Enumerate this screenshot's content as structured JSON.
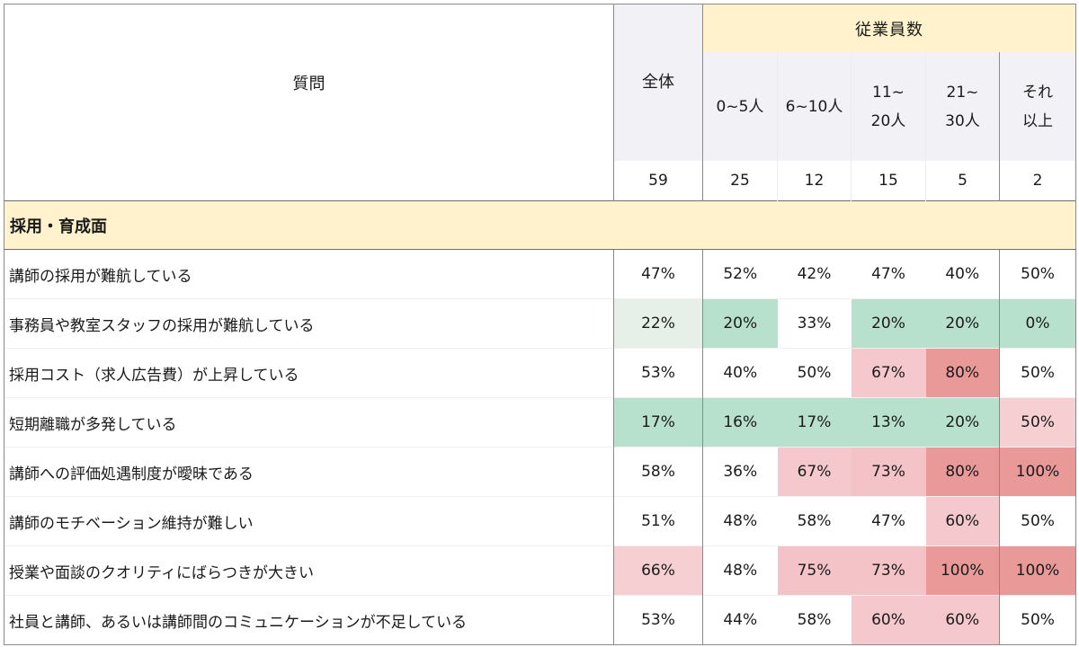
{
  "header": {
    "question_label": "質問",
    "total_label": "全体",
    "group_label": "従業員数",
    "columns": [
      {
        "label_line1": "0~5人",
        "label_line2": ""
      },
      {
        "label_line1": "6~10人",
        "label_line2": ""
      },
      {
        "label_line1": "11~",
        "label_line2": "20人"
      },
      {
        "label_line1": "21~",
        "label_line2": "30人"
      },
      {
        "label_line1": "それ",
        "label_line2": "以上"
      }
    ],
    "counts": {
      "total": "59",
      "values": [
        "25",
        "12",
        "15",
        "5",
        "2"
      ]
    }
  },
  "section": {
    "title": "採用・育成面"
  },
  "colors": {
    "header_group_bg": "#fff2cc",
    "header_sub_bg": "#f2f1f5",
    "green": "#b7e1cd",
    "green_light": "#e6f0e8",
    "pink_light": "#f6cfd3",
    "pink_mid": "#f3bcc2",
    "red": "#ea9999",
    "white": "#ffffff"
  },
  "rows": [
    {
      "question": "講師の採用が難航している",
      "total": "47%",
      "values": [
        "52%",
        "42%",
        "47%",
        "40%",
        "50%"
      ],
      "bg": [
        "#ffffff",
        "#ffffff",
        "#ffffff",
        "#ffffff",
        "#ffffff",
        "#ffffff"
      ]
    },
    {
      "question": "事務員や教室スタッフの採用が難航している",
      "total": "22%",
      "values": [
        "20%",
        "33%",
        "20%",
        "20%",
        "0%"
      ],
      "bg": [
        "#e6f0e8",
        "#b7e1cd",
        "#ffffff",
        "#b7e1cd",
        "#b7e1cd",
        "#b7e1cd"
      ]
    },
    {
      "question": "採用コスト（求人広告費）が上昇している",
      "total": "53%",
      "values": [
        "40%",
        "50%",
        "67%",
        "80%",
        "50%"
      ],
      "bg": [
        "#ffffff",
        "#ffffff",
        "#ffffff",
        "#f4c8cc",
        "#ea9999",
        "#ffffff"
      ]
    },
    {
      "question": "短期離職が多発している",
      "total": "17%",
      "values": [
        "16%",
        "17%",
        "13%",
        "20%",
        "50%"
      ],
      "bg": [
        "#b7e1cd",
        "#b7e1cd",
        "#b7e1cd",
        "#b7e1cd",
        "#b7e1cd",
        "#f6cfd3"
      ]
    },
    {
      "question": "講師への評価処遇制度が曖昧である",
      "total": "58%",
      "values": [
        "36%",
        "67%",
        "73%",
        "80%",
        "100%"
      ],
      "bg": [
        "#ffffff",
        "#ffffff",
        "#f4c8cc",
        "#f3c3c7",
        "#ea9999",
        "#ea9999"
      ]
    },
    {
      "question": "講師のモチベーション維持が難しい",
      "total": "51%",
      "values": [
        "48%",
        "58%",
        "47%",
        "60%",
        "50%"
      ],
      "bg": [
        "#ffffff",
        "#ffffff",
        "#ffffff",
        "#ffffff",
        "#f4c8cc",
        "#ffffff"
      ]
    },
    {
      "question": "授業や面談のクオリティにばらつきが大きい",
      "total": "66%",
      "values": [
        "48%",
        "75%",
        "73%",
        "100%",
        "100%"
      ],
      "bg": [
        "#f6cfd3",
        "#ffffff",
        "#f3c3c7",
        "#f3c3c7",
        "#ea9999",
        "#ea9999"
      ]
    },
    {
      "question": "社員と講師、あるいは講師間のコミュニケーションが不足している",
      "total": "53%",
      "values": [
        "44%",
        "58%",
        "60%",
        "60%",
        "50%"
      ],
      "bg": [
        "#ffffff",
        "#ffffff",
        "#ffffff",
        "#f4c8cc",
        "#f4c8cc",
        "#ffffff"
      ]
    }
  ]
}
